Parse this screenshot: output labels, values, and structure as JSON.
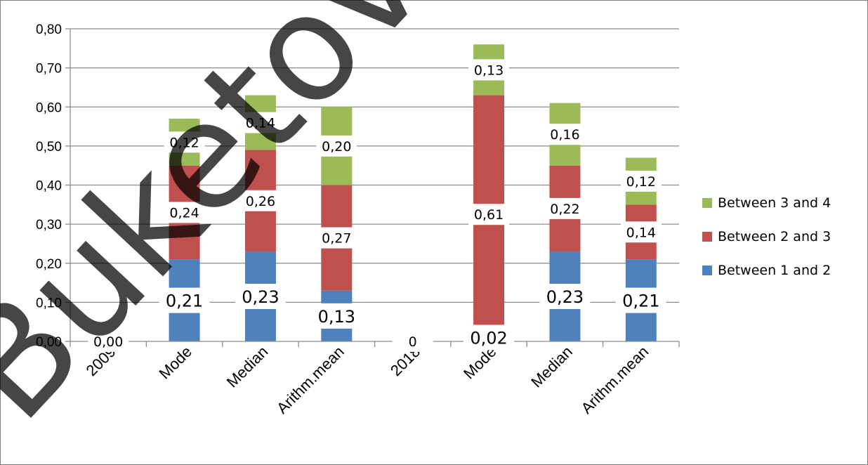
{
  "chart_data": {
    "type": "bar",
    "stacked": true,
    "categories": [
      "2009",
      "Mode",
      "Median",
      "Arithm.mean",
      "2018",
      "Mode",
      "Median",
      "Arithm.mean"
    ],
    "y_ticks": [
      "0,00",
      "0,10",
      "0,20",
      "0,30",
      "0,40",
      "0,50",
      "0,60",
      "0,70",
      "0,80"
    ],
    "ylim": [
      0,
      0.8
    ],
    "grid": true,
    "legend_position": "right",
    "series": [
      {
        "name": "Between 1 and 2",
        "color": "#4f81bd",
        "values": [
          0,
          0.21,
          0.23,
          0.13,
          0,
          0.02,
          0.23,
          0.21
        ]
      },
      {
        "name": "Between 2 and 3",
        "color": "#c0504d",
        "values": [
          0,
          0.24,
          0.26,
          0.27,
          0,
          0.61,
          0.22,
          0.14
        ]
      },
      {
        "name": "Between 3 and 4",
        "color": "#9bbb59",
        "values": [
          0,
          0.12,
          0.14,
          0.2,
          0,
          0.13,
          0.16,
          0.12
        ]
      }
    ],
    "data_labels": [
      {
        "category_index": 0,
        "series_index": 0,
        "text": "0,00",
        "size": "small"
      },
      {
        "category_index": 1,
        "series_index": 0,
        "text": "0,21",
        "size": "big"
      },
      {
        "category_index": 2,
        "series_index": 0,
        "text": "0,23",
        "size": "big"
      },
      {
        "category_index": 3,
        "series_index": 0,
        "text": "0,13",
        "size": "big"
      },
      {
        "category_index": 4,
        "series_index": 0,
        "text": "0",
        "size": "small"
      },
      {
        "category_index": 5,
        "series_index": 0,
        "text": "0,02",
        "size": "big"
      },
      {
        "category_index": 6,
        "series_index": 0,
        "text": "0,23",
        "size": "big"
      },
      {
        "category_index": 7,
        "series_index": 0,
        "text": "0,21",
        "size": "big"
      },
      {
        "category_index": 1,
        "series_index": 1,
        "text": "0,24",
        "size": "small"
      },
      {
        "category_index": 2,
        "series_index": 1,
        "text": "0,26",
        "size": "small"
      },
      {
        "category_index": 3,
        "series_index": 1,
        "text": "0,27",
        "size": "small"
      },
      {
        "category_index": 5,
        "series_index": 1,
        "text": "0,61",
        "size": "small"
      },
      {
        "category_index": 6,
        "series_index": 1,
        "text": "0,22",
        "size": "small"
      },
      {
        "category_index": 7,
        "series_index": 1,
        "text": "0,14",
        "size": "small"
      },
      {
        "category_index": 1,
        "series_index": 2,
        "text": "0,12",
        "size": "small"
      },
      {
        "category_index": 2,
        "series_index": 2,
        "text": "0,14",
        "size": "small"
      },
      {
        "category_index": 3,
        "series_index": 2,
        "text": "0,20",
        "size": "small"
      },
      {
        "category_index": 5,
        "series_index": 2,
        "text": "0,13",
        "size": "small"
      },
      {
        "category_index": 6,
        "series_index": 2,
        "text": "0,16",
        "size": "small"
      },
      {
        "category_index": 7,
        "series_index": 2,
        "text": "0,12",
        "size": "small"
      }
    ]
  },
  "watermark": {
    "text": "Buketov Uni"
  }
}
